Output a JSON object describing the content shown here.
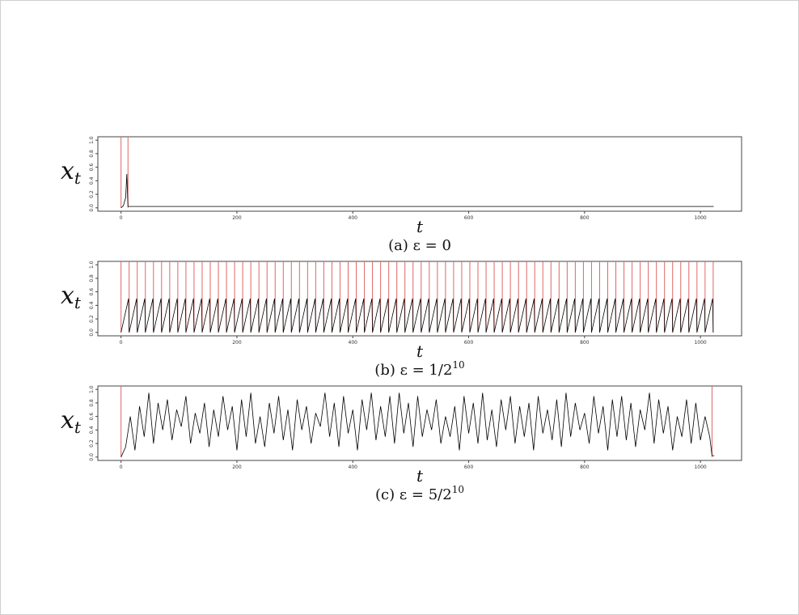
{
  "chart_data": [
    {
      "type": "line",
      "caption": {
        "text": "(a) ε = 0"
      },
      "xlabel": "t",
      "ylabel": {
        "base": "x",
        "sub": "t"
      },
      "xlim": [
        -40,
        1071
      ],
      "ylim": [
        -0.05,
        1.05
      ],
      "xticks": [
        0,
        200,
        400,
        600,
        800,
        1000
      ],
      "yticks": [
        {
          "value": 0,
          "label": "0.0"
        },
        0.2,
        0.4,
        0.6,
        0.8,
        {
          "value": 1,
          "label": "1.0"
        }
      ],
      "color": "#000000",
      "vline_color": "#e06666",
      "x": [
        0,
        4,
        8,
        10,
        11,
        12,
        13,
        1023
      ],
      "values": [
        0,
        0.03,
        0.15,
        0.5,
        0.25,
        0.02,
        0.02,
        0.02
      ],
      "vlines": [
        0,
        12
      ]
    },
    {
      "type": "line",
      "caption": {
        "text": "(b) ε = 1/2",
        "sup": "10"
      },
      "xlabel": "t",
      "ylabel": {
        "base": "x",
        "sub": "t"
      },
      "xlim": [
        -40,
        1071
      ],
      "ylim": [
        -0.05,
        1.05
      ],
      "xticks": [
        0,
        200,
        400,
        600,
        800,
        1000
      ],
      "yticks": [
        {
          "value": 0,
          "label": "0.0"
        },
        0.2,
        0.4,
        0.6,
        0.8,
        {
          "value": 1,
          "label": "1.0"
        }
      ],
      "color": "#000000",
      "vline_color": "#e06666",
      "x": [
        0,
        13,
        14,
        27,
        28,
        41,
        42,
        55,
        56,
        69,
        70,
        83,
        84,
        97,
        98,
        111,
        112,
        125,
        126,
        139,
        140,
        153,
        154,
        167,
        168,
        181,
        182,
        195,
        196,
        209,
        210,
        223,
        224,
        237,
        238,
        251,
        252,
        265,
        266,
        279,
        280,
        293,
        294,
        307,
        308,
        321,
        322,
        335,
        336,
        349,
        350,
        363,
        364,
        377,
        378,
        391,
        392,
        405,
        406,
        419,
        420,
        433,
        434,
        447,
        448,
        461,
        462,
        475,
        476,
        489,
        490,
        503,
        504,
        517,
        518,
        531,
        532,
        545,
        546,
        559,
        560,
        573,
        574,
        587,
        588,
        601,
        602,
        615,
        616,
        629,
        630,
        643,
        644,
        657,
        658,
        671,
        672,
        685,
        686,
        699,
        700,
        713,
        714,
        727,
        728,
        741,
        742,
        755,
        756,
        769,
        770,
        783,
        784,
        797,
        798,
        811,
        812,
        825,
        826,
        839,
        840,
        853,
        854,
        867,
        868,
        881,
        882,
        895,
        896,
        909,
        910,
        923,
        924,
        937,
        938,
        951,
        952,
        965,
        966,
        979,
        980,
        993,
        994,
        1007,
        1008,
        1021,
        1022
      ],
      "values": [
        0,
        0.5,
        0,
        0.5,
        0,
        0.5,
        0,
        0.5,
        0,
        0.5,
        0,
        0.5,
        0,
        0.5,
        0,
        0.5,
        0,
        0.5,
        0,
        0.5,
        0,
        0.5,
        0,
        0.5,
        0,
        0.5,
        0,
        0.5,
        0,
        0.5,
        0,
        0.5,
        0,
        0.5,
        0,
        0.5,
        0,
        0.5,
        0,
        0.5,
        0,
        0.5,
        0,
        0.5,
        0,
        0.5,
        0,
        0.5,
        0,
        0.5,
        0,
        0.5,
        0,
        0.5,
        0,
        0.5,
        0,
        0.5,
        0,
        0.5,
        0,
        0.5,
        0,
        0.5,
        0,
        0.5,
        0,
        0.5,
        0,
        0.5,
        0,
        0.5,
        0,
        0.5,
        0,
        0.5,
        0,
        0.5,
        0,
        0.5,
        0,
        0.5,
        0,
        0.5,
        0,
        0.5,
        0,
        0.5,
        0,
        0.5,
        0,
        0.5,
        0,
        0.5,
        0,
        0.5,
        0,
        0.5,
        0,
        0.5,
        0,
        0.5,
        0,
        0.5,
        0,
        0.5,
        0,
        0.5,
        0,
        0.5,
        0,
        0.5,
        0,
        0.5,
        0,
        0.5,
        0,
        0.5,
        0,
        0.5,
        0,
        0.5,
        0,
        0.5,
        0,
        0.5,
        0,
        0.5,
        0,
        0.5,
        0,
        0.5,
        0,
        0.5,
        0,
        0.5,
        0,
        0.5,
        0,
        0.5,
        0,
        0.5,
        0,
        0.5,
        0,
        0.5,
        0
      ],
      "vlines": [
        0,
        14,
        28,
        42,
        56,
        70,
        84,
        98,
        112,
        126,
        140,
        154,
        168,
        182,
        196,
        210,
        224,
        238,
        252,
        266,
        280,
        294,
        308,
        322,
        336,
        350,
        364,
        378,
        392,
        406,
        420,
        434,
        448,
        462,
        476,
        490,
        504,
        518,
        532,
        546,
        560,
        574,
        588,
        602,
        616,
        630,
        644,
        658,
        672,
        686,
        700,
        714,
        728,
        742,
        756,
        770,
        784,
        798,
        812,
        826,
        840,
        854,
        868,
        882,
        896,
        910,
        924,
        938,
        952,
        966,
        980,
        994,
        1008,
        1022
      ]
    },
    {
      "type": "line",
      "caption": {
        "text": "(c) ε = 5/2",
        "sup": "10"
      },
      "xlabel": "t",
      "ylabel": {
        "base": "x",
        "sub": "t"
      },
      "xlim": [
        -40,
        1071
      ],
      "ylim": [
        -0.05,
        1.05
      ],
      "xticks": [
        0,
        200,
        400,
        600,
        800,
        1000
      ],
      "yticks": [
        {
          "value": 0,
          "label": "0.0"
        },
        0.2,
        0.4,
        0.6,
        0.8,
        {
          "value": 1,
          "label": "1.0"
        }
      ],
      "color": "#000000",
      "vline_color": "#e06666",
      "x": [
        0,
        8,
        16,
        24,
        32,
        40,
        48,
        56,
        64,
        72,
        80,
        88,
        96,
        104,
        112,
        120,
        128,
        136,
        144,
        152,
        160,
        168,
        176,
        184,
        192,
        200,
        208,
        216,
        224,
        232,
        240,
        248,
        256,
        264,
        272,
        280,
        288,
        296,
        304,
        312,
        320,
        328,
        336,
        344,
        352,
        360,
        368,
        376,
        384,
        392,
        400,
        408,
        416,
        424,
        432,
        440,
        448,
        456,
        464,
        472,
        480,
        488,
        496,
        504,
        512,
        520,
        528,
        536,
        544,
        552,
        560,
        568,
        576,
        584,
        592,
        600,
        608,
        616,
        624,
        632,
        640,
        648,
        656,
        664,
        672,
        680,
        688,
        696,
        704,
        712,
        720,
        728,
        736,
        744,
        752,
        760,
        768,
        776,
        784,
        792,
        800,
        808,
        816,
        824,
        832,
        840,
        848,
        856,
        864,
        872,
        880,
        888,
        896,
        904,
        912,
        920,
        928,
        936,
        944,
        952,
        960,
        968,
        976,
        984,
        992,
        1000,
        1008,
        1016,
        1020,
        1024
      ],
      "values": [
        0,
        0.15,
        0.6,
        0.1,
        0.75,
        0.3,
        0.95,
        0.2,
        0.8,
        0.4,
        0.85,
        0.25,
        0.7,
        0.45,
        0.9,
        0.2,
        0.65,
        0.35,
        0.8,
        0.15,
        0.7,
        0.3,
        0.9,
        0.4,
        0.75,
        0.1,
        0.85,
        0.3,
        0.95,
        0.2,
        0.6,
        0.15,
        0.8,
        0.35,
        0.9,
        0.25,
        0.7,
        0.1,
        0.85,
        0.4,
        0.75,
        0.2,
        0.65,
        0.45,
        0.95,
        0.3,
        0.8,
        0.15,
        0.9,
        0.35,
        0.7,
        0.1,
        0.85,
        0.4,
        0.95,
        0.25,
        0.75,
        0.3,
        0.9,
        0.2,
        0.95,
        0.35,
        0.8,
        0.15,
        0.9,
        0.3,
        0.7,
        0.4,
        0.85,
        0.2,
        0.6,
        0.3,
        0.75,
        0.1,
        0.9,
        0.35,
        0.8,
        0.2,
        0.95,
        0.25,
        0.7,
        0.15,
        0.85,
        0.4,
        0.9,
        0.2,
        0.75,
        0.3,
        0.8,
        0.1,
        0.9,
        0.35,
        0.7,
        0.25,
        0.85,
        0.15,
        0.95,
        0.3,
        0.8,
        0.4,
        0.65,
        0.2,
        0.9,
        0.35,
        0.75,
        0.1,
        0.85,
        0.3,
        0.9,
        0.25,
        0.8,
        0.15,
        0.7,
        0.4,
        0.95,
        0.2,
        0.85,
        0.35,
        0.75,
        0.1,
        0.6,
        0.3,
        0.85,
        0.2,
        0.8,
        0.25,
        0.6,
        0.3,
        0.02,
        0.02
      ],
      "vlines": [
        0,
        1020
      ]
    }
  ]
}
